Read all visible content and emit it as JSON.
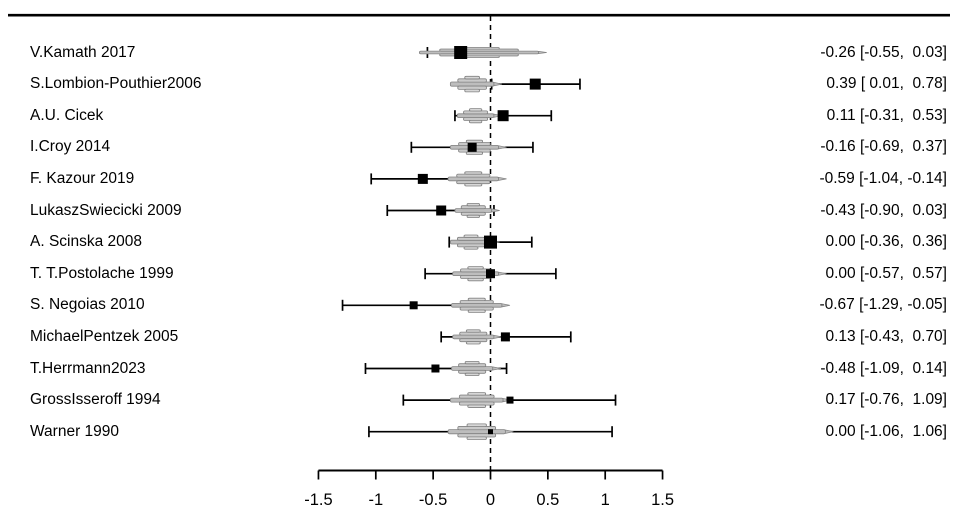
{
  "chart_data": {
    "type": "forest",
    "title": "",
    "xlabel": "",
    "axis": {
      "range": [
        -1.5,
        1.5
      ],
      "tick_values": [
        -1.5,
        -1,
        -0.5,
        0,
        0.5,
        1,
        1.5
      ],
      "tick_labels": [
        "-1.5",
        "-1",
        "-0.5",
        "0",
        "0.5",
        "1",
        "1.5"
      ],
      "zero_reference_line": 0
    },
    "colors": {
      "marker": "#000000",
      "ci_line": "#000000",
      "violin_fill_outer": "#bdbdbd",
      "violin_fill_mid": "#cacaca",
      "violin_fill_cap": "#d7d7d7",
      "violin_stroke": "#828282",
      "axis": "#000000",
      "background": "#ffffff"
    },
    "studies": [
      {
        "label": "V.Kamath 2017",
        "est": -0.26,
        "lo": -0.55,
        "hi": 0.03,
        "text": "-0.26 [-0.55,  0.03]",
        "sq": 13,
        "violin": {
          "c": -0.1,
          "hw": 0.52,
          "h": 0.72
        }
      },
      {
        "label": "S.Lombion-Pouthier2006",
        "est": 0.39,
        "lo": 0.01,
        "hi": 0.78,
        "text": "0.39 [ 0.01,  0.78]",
        "sq": 11,
        "violin": {
          "c": -0.16,
          "hw": 0.19,
          "h": 1.1
        }
      },
      {
        "label": "A.U. Cicek",
        "est": 0.11,
        "lo": -0.31,
        "hi": 0.53,
        "text": "0.11 [-0.31,  0.53]",
        "sq": 11,
        "violin": {
          "c": -0.13,
          "hw": 0.16,
          "h": 1.0
        }
      },
      {
        "label": "I.Croy 2014",
        "est": -0.16,
        "lo": -0.69,
        "hi": 0.37,
        "text": "-0.16 [-0.69,  0.37]",
        "sq": 9,
        "violin": {
          "c": -0.14,
          "hw": 0.21,
          "h": 1.0
        }
      },
      {
        "label": "F. Kazour 2019",
        "est": -0.59,
        "lo": -1.04,
        "hi": -0.14,
        "text": "-0.59 [-1.04, -0.14]",
        "sq": 10,
        "violin": {
          "c": -0.15,
          "hw": 0.22,
          "h": 1.0
        }
      },
      {
        "label": "LukaszSwiecicki 2009",
        "est": -0.43,
        "lo": -0.9,
        "hi": 0.03,
        "text": "-0.43 [-0.90,  0.03]",
        "sq": 10,
        "violin": {
          "c": -0.15,
          "hw": 0.16,
          "h": 1.0
        }
      },
      {
        "label": "A. Scinska 2008",
        "est": 0.0,
        "lo": -0.36,
        "hi": 0.36,
        "text": "0.00 [-0.36,  0.36]",
        "sq": 13,
        "violin": {
          "c": -0.17,
          "hw": 0.18,
          "h": 1.0
        }
      },
      {
        "label": "T. T.Postolache 1999",
        "est": 0.0,
        "lo": -0.57,
        "hi": 0.57,
        "text": "0.00 [-0.57,  0.57]",
        "sq": 9,
        "violin": {
          "c": -0.13,
          "hw": 0.2,
          "h": 1.0
        }
      },
      {
        "label": "S. Negoias 2010",
        "est": -0.67,
        "lo": -1.29,
        "hi": -0.05,
        "text": "-0.67 [-1.29, -0.05]",
        "sq": 8,
        "violin": {
          "c": -0.12,
          "hw": 0.22,
          "h": 1.0
        }
      },
      {
        "label": "MichaelPentzek 2005",
        "est": 0.13,
        "lo": -0.43,
        "hi": 0.7,
        "text": "0.13 [-0.43,  0.70]",
        "sq": 9,
        "violin": {
          "c": -0.15,
          "hw": 0.18,
          "h": 1.0
        }
      },
      {
        "label": "T.Herrmann2023",
        "est": -0.48,
        "lo": -1.09,
        "hi": 0.14,
        "text": "-0.48 [-1.09,  0.14]",
        "sq": 8,
        "violin": {
          "c": -0.16,
          "hw": 0.18,
          "h": 1.0
        }
      },
      {
        "label": "GrossIsseroff 1994",
        "est": 0.17,
        "lo": -0.76,
        "hi": 1.09,
        "text": "0.17 [-0.76,  1.09]",
        "sq": 7,
        "violin": {
          "c": -0.12,
          "hw": 0.23,
          "h": 1.05
        }
      },
      {
        "label": "Warner 1990",
        "est": 0.0,
        "lo": -1.06,
        "hi": 1.06,
        "text": "0.00 [-1.06,  1.06]",
        "sq": 5,
        "violin": {
          "c": -0.12,
          "hw": 0.25,
          "h": 1.1
        }
      }
    ]
  }
}
